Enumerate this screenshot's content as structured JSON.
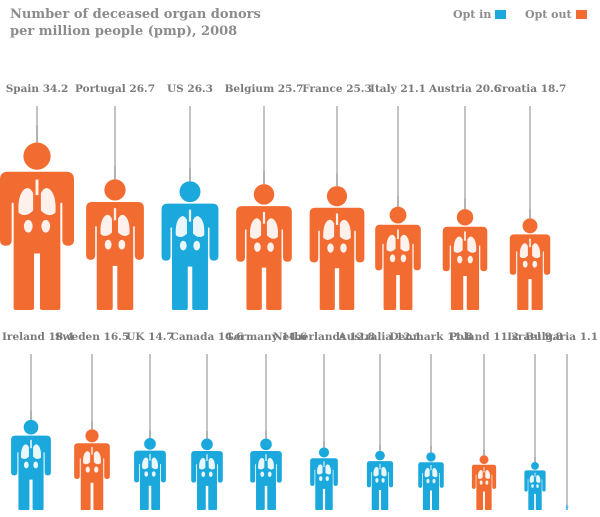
{
  "chart_data": {
    "type": "pictogram",
    "title": "Number of deceased organ donors per million people (pmp), 2008",
    "legend": [
      {
        "key": "opt_in",
        "label": "Opt in",
        "color": "#1aa8dd"
      },
      {
        "key": "opt_out",
        "label": "Opt out",
        "color": "#f26c32"
      }
    ],
    "rows": [
      [
        {
          "country": "Spain",
          "value": 34.2,
          "policy": "opt_out",
          "label": "Spain 34.2"
        },
        {
          "country": "Portugal",
          "value": 26.7,
          "policy": "opt_out",
          "label": "Portugal 26.7"
        },
        {
          "country": "US",
          "value": 26.3,
          "policy": "opt_in",
          "label": "US 26.3"
        },
        {
          "country": "Belgium",
          "value": 25.7,
          "policy": "opt_out",
          "label": "Belgium 25.7"
        },
        {
          "country": "France",
          "value": 25.3,
          "policy": "opt_out",
          "label": "France 25.3"
        },
        {
          "country": "Italy",
          "value": 21.1,
          "policy": "opt_out",
          "label": "Italy 21.1"
        },
        {
          "country": "Austria",
          "value": 20.6,
          "policy": "opt_out",
          "label": "Austria 20.6"
        },
        {
          "country": "Croatia",
          "value": 18.7,
          "policy": "opt_out",
          "label": "Croatia 18.7"
        }
      ],
      [
        {
          "country": "Ireland",
          "value": 18.4,
          "policy": "opt_in",
          "label": "Ireland 18.4"
        },
        {
          "country": "Sweden",
          "value": 16.5,
          "policy": "opt_out",
          "label": "Sweden 16.5"
        },
        {
          "country": "UK",
          "value": 14.7,
          "policy": "opt_in",
          "label": "UK 14.7"
        },
        {
          "country": "Canada",
          "value": 14.6,
          "policy": "opt_in",
          "label": "Canada 14.6"
        },
        {
          "country": "Germany",
          "value": 14.6,
          "policy": "opt_in",
          "label": "Germany 14.6"
        },
        {
          "country": "Netherlands",
          "value": 12.8,
          "policy": "opt_in",
          "label": "Netherlands 12.8"
        },
        {
          "country": "Australia",
          "value": 12.1,
          "policy": "opt_in",
          "label": "Australia 12.1"
        },
        {
          "country": "Denmark",
          "value": 11.8,
          "policy": "opt_in",
          "label": "Denmark 11.8"
        },
        {
          "country": "Poland",
          "value": 11.2,
          "policy": "opt_out",
          "label": "Poland 11.2"
        },
        {
          "country": "Israel",
          "value": 9.8,
          "policy": "opt_in",
          "label": "Israel 9.8"
        },
        {
          "country": "Bulgaria",
          "value": 1.1,
          "policy": "opt_in",
          "label": "Bulgaria 1.1"
        }
      ]
    ]
  }
}
